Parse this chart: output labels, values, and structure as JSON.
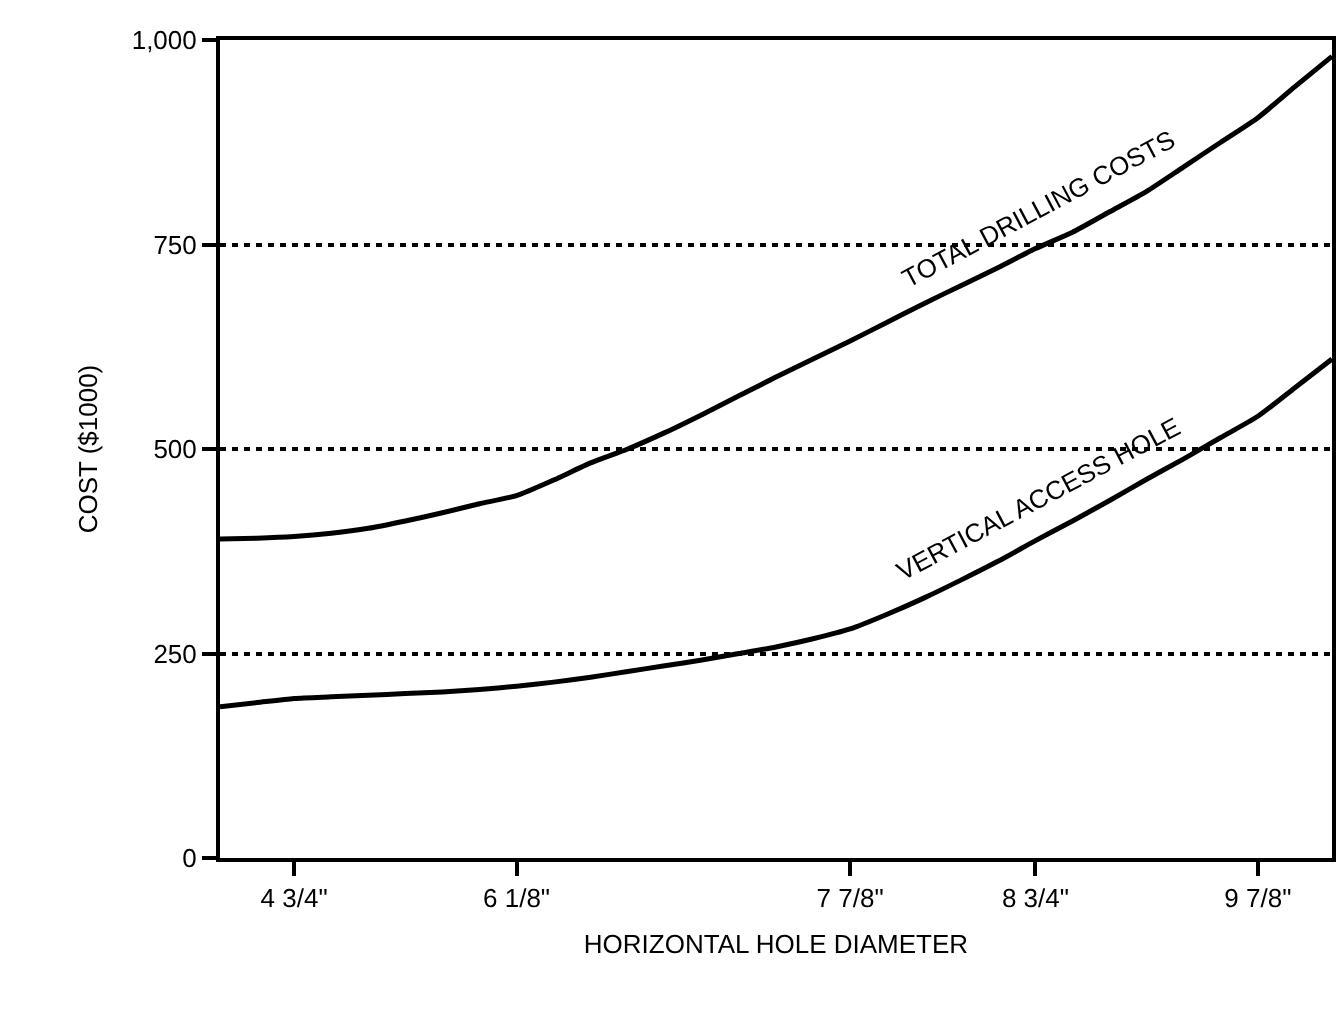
{
  "chart_data": {
    "type": "line",
    "xlabel": "HORIZONTAL HOLE DIAMETER",
    "ylabel": "COST ($1000)",
    "categories": [
      null,
      null,
      "4 3/4\"",
      null,
      null,
      null,
      null,
      null,
      "6 1/8\"",
      null,
      null,
      null,
      null,
      null,
      null,
      null,
      null,
      "7 7/8\"",
      null,
      null,
      null,
      null,
      "8 3/4\"",
      null,
      null,
      null,
      null,
      null,
      "9 7/8\"",
      null,
      null
    ],
    "series": [
      {
        "name": "TOTAL DRILLING COSTS",
        "color": "#000000",
        "values": [
          390,
          391,
          393,
          397,
          403,
          412,
          422,
          433,
          443,
          462,
          483,
          500,
          520,
          542,
          565,
          588,
          610,
          632,
          655,
          678,
          700,
          722,
          745,
          765,
          790,
          815,
          845,
          875,
          905,
          943,
          980
        ]
      },
      {
        "name": "VERTICAL ACCESS HOLE",
        "color": "#000000",
        "values": [
          185,
          190,
          195,
          197,
          199,
          201,
          203,
          206,
          210,
          215,
          221,
          228,
          235,
          242,
          250,
          258,
          268,
          280,
          298,
          318,
          340,
          363,
          388,
          412,
          437,
          463,
          488,
          514,
          540,
          575,
          610
        ]
      }
    ],
    "ylim": [
      0,
      1000
    ],
    "yticks": [
      0,
      250,
      500,
      750,
      {
        "value": 1000,
        "label": "1,000"
      }
    ],
    "grid": "y",
    "legend": false,
    "marker": "none",
    "line_style": "solid"
  }
}
